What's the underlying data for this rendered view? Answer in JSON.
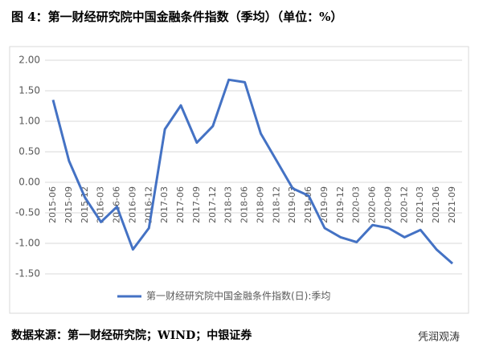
{
  "chart_data": {
    "type": "line",
    "title": "图 4：第一财经研究院中国金融条件指数（季均）（单位：%）",
    "source": "数据来源：第一财经研究院；WIND；中银证券",
    "watermark": "凭润观涛",
    "categories": [
      "2015-06",
      "2015-09",
      "2015-12",
      "2016-03",
      "2016-06",
      "2016-09",
      "2016-12",
      "2017-03",
      "2017-06",
      "2017-09",
      "2017-12",
      "2018-03",
      "2018-06",
      "2018-09",
      "2018-12",
      "2019-03",
      "2019-06",
      "2019-09",
      "2019-12",
      "2020-03",
      "2020-06",
      "2020-09",
      "2020-12",
      "2021-03",
      "2021-06",
      "2021-09"
    ],
    "series": [
      {
        "name": "第一财经研究院中国金融条件指数(日):季均",
        "color": "#4472c4",
        "values": [
          1.35,
          0.35,
          -0.25,
          -0.65,
          -0.4,
          -1.1,
          -0.75,
          0.87,
          1.26,
          0.65,
          0.92,
          1.68,
          1.64,
          0.8,
          0.35,
          -0.1,
          -0.22,
          -0.75,
          -0.9,
          -0.98,
          -0.7,
          -0.75,
          -0.9,
          -0.78,
          -1.1,
          -1.33
        ]
      }
    ],
    "ylim": [
      -1.5,
      2.0
    ],
    "yticks": [
      {
        "value": -1.5,
        "label": "-1.50"
      },
      {
        "value": -1.0,
        "label": "-1.00"
      },
      {
        "value": -0.5,
        "label": "-0.50"
      },
      {
        "value": 0,
        "label": "0.00"
      },
      {
        "value": 0.5,
        "label": "0.50"
      },
      {
        "value": 1.0,
        "label": "1.00"
      },
      {
        "value": 1.5,
        "label": "1.50"
      },
      {
        "value": 2.0,
        "label": "2.00"
      }
    ],
    "grid": true,
    "legend": "bottom"
  }
}
